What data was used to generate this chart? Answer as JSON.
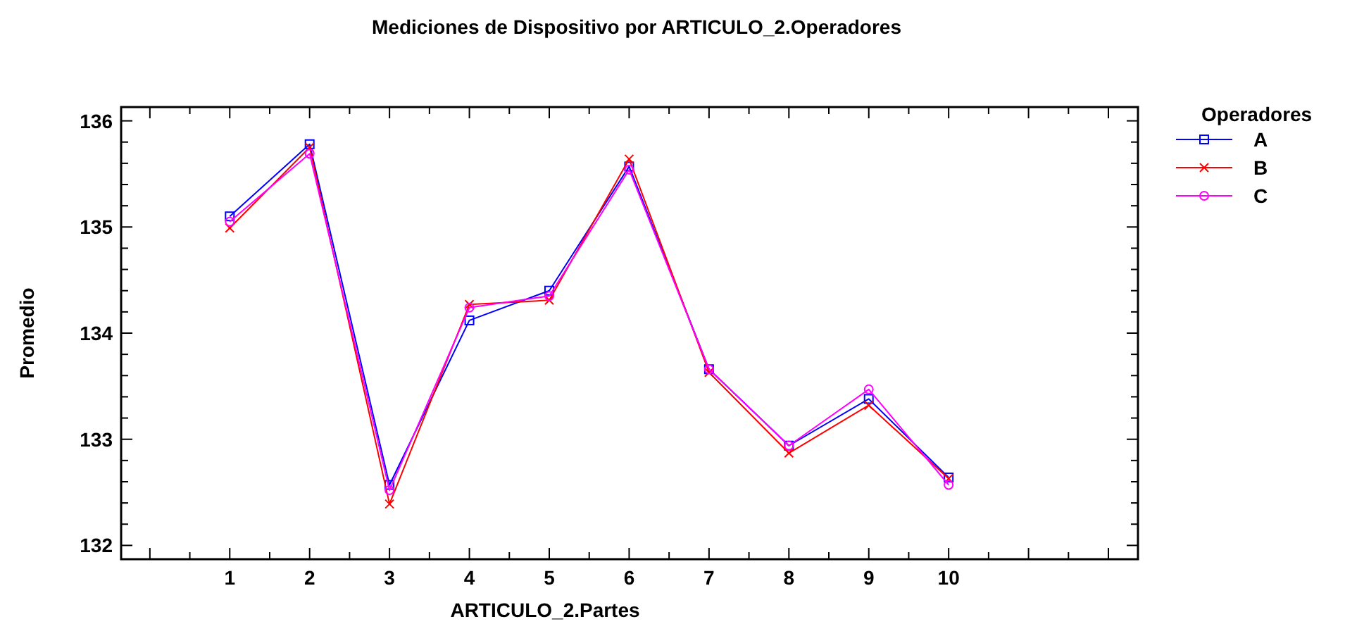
{
  "chart_data": {
    "type": "line",
    "title": "Mediciones de Dispositivo por ARTICULO_2.Operadores",
    "xlabel": "ARTICULO_2.Partes",
    "ylabel": "Promedio",
    "legend_title": "Operadores",
    "legend": "top right",
    "grid": false,
    "x": [
      1,
      2,
      3,
      4,
      5,
      6,
      7,
      8,
      9,
      10
    ],
    "xlim": [
      -0.36,
      12.37
    ],
    "xticks": [
      {
        "value": 0,
        "label": null
      },
      {
        "value": 0.5,
        "label": null
      },
      1,
      {
        "value": 1.5,
        "label": null
      },
      2,
      {
        "value": 2.5,
        "label": null
      },
      3,
      {
        "value": 3.5,
        "label": null
      },
      4,
      {
        "value": 4.5,
        "label": null
      },
      5,
      {
        "value": 5.5,
        "label": null
      },
      6,
      {
        "value": 6.5,
        "label": null
      },
      7,
      {
        "value": 7.5,
        "label": null
      },
      8,
      {
        "value": 8.5,
        "label": null
      },
      9,
      {
        "value": 9.5,
        "label": null
      },
      10,
      {
        "value": 10.5,
        "label": null
      },
      {
        "value": 11,
        "label": null
      },
      {
        "value": 11.5,
        "label": null
      },
      {
        "value": 12,
        "label": null
      }
    ],
    "ylim": [
      131.87,
      136.13
    ],
    "yticks": [
      132,
      {
        "value": 132.2,
        "label": null
      },
      {
        "value": 132.4,
        "label": null
      },
      {
        "value": 132.6,
        "label": null
      },
      {
        "value": 132.8,
        "label": null
      },
      133,
      {
        "value": 133.2,
        "label": null
      },
      {
        "value": 133.4,
        "label": null
      },
      {
        "value": 133.6,
        "label": null
      },
      {
        "value": 133.8,
        "label": null
      },
      134,
      {
        "value": 134.2,
        "label": null
      },
      {
        "value": 134.4,
        "label": null
      },
      {
        "value": 134.6,
        "label": null
      },
      {
        "value": 134.8,
        "label": null
      },
      135,
      {
        "value": 135.2,
        "label": null
      },
      {
        "value": 135.4,
        "label": null
      },
      {
        "value": 135.6,
        "label": null
      },
      {
        "value": 135.8,
        "label": null
      },
      136
    ],
    "series": [
      {
        "name": "A",
        "color": "#0000ff",
        "marker": "square",
        "values": [
          135.1,
          135.78,
          132.57,
          134.12,
          134.4,
          135.57,
          133.66,
          132.94,
          133.38,
          132.64
        ]
      },
      {
        "name": "B",
        "color": "#ff0000",
        "marker": "cross",
        "values": [
          134.99,
          135.75,
          132.39,
          134.27,
          134.31,
          135.64,
          133.63,
          132.87,
          133.32,
          132.63
        ]
      },
      {
        "name": "C",
        "color": "#ff00ff",
        "marker": "circle",
        "values": [
          135.05,
          135.69,
          132.52,
          134.24,
          134.35,
          135.54,
          133.66,
          132.94,
          133.47,
          132.57
        ]
      }
    ]
  }
}
